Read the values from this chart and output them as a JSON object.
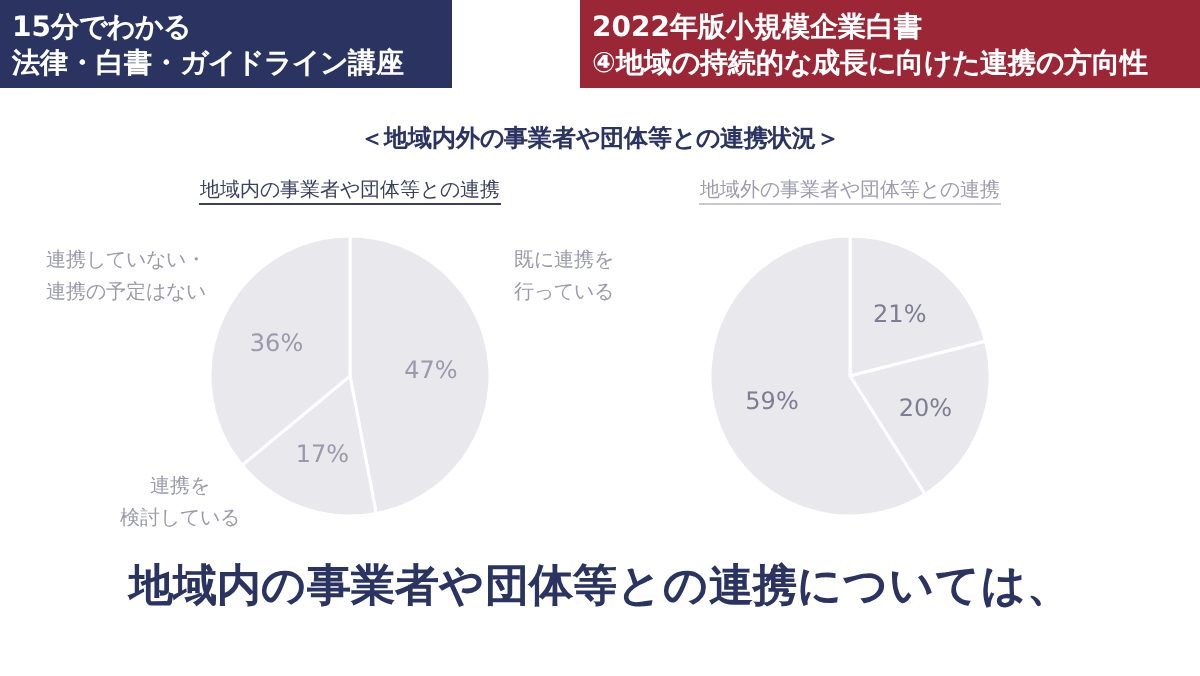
{
  "chart_data": [
    {
      "type": "other",
      "annotations": [
        "15分でわかる法律・白書・ガイドライン講座",
        "2022年版小規模企業白書④地域の持続的な成長に向けた連携の方向性",
        "＜地域内外の事業者や団体等との連携状況＞",
        "地域内の事業者や団体等との連携については、"
      ],
      "colors": [
        "#2b3461",
        "#9b2736",
        "#2b3461",
        "#2b3461"
      ]
    },
    {
      "type": "pie",
      "title": "地域内の事業者や団体等との連携",
      "categories": [
        "既に連携を行っている",
        "連携を検討している",
        "連携していない・連携の予定はない"
      ],
      "values": [
        47,
        17,
        36
      ],
      "value_labels": [
        "47%",
        "17%",
        "36%"
      ],
      "colors": [
        "#e9e8ed",
        "#e9e8ed",
        "#e9e8ed"
      ]
    },
    {
      "type": "pie",
      "title": "地域外の事業者や団体等との連携",
      "categories": [
        null,
        null,
        null
      ],
      "values": [
        21,
        20,
        59
      ],
      "value_labels": [
        "21%",
        "20%",
        "59%"
      ],
      "colors": [
        "#e9e8ed",
        "#e9e8ed",
        "#e9e8ed"
      ]
    }
  ]
}
